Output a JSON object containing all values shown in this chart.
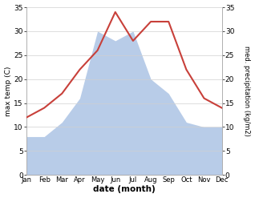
{
  "months": [
    "Jan",
    "Feb",
    "Mar",
    "Apr",
    "May",
    "Jun",
    "Jul",
    "Aug",
    "Sep",
    "Oct",
    "Nov",
    "Dec"
  ],
  "temperature": [
    12,
    14,
    17,
    22,
    26,
    34,
    28,
    32,
    32,
    22,
    16,
    14
  ],
  "precipitation": [
    8,
    8,
    11,
    16,
    30,
    28,
    30,
    20,
    17,
    11,
    10,
    10
  ],
  "temp_color": "#c8403a",
  "precip_color": "#b8cce8",
  "ylim": [
    0,
    35
  ],
  "yticks": [
    0,
    5,
    10,
    15,
    20,
    25,
    30,
    35
  ],
  "xlabel": "date (month)",
  "ylabel_left": "max temp (C)",
  "ylabel_right": "med. precipitation (kg/m2)",
  "background_color": "#ffffff",
  "grid_color": "#d0d0d0"
}
